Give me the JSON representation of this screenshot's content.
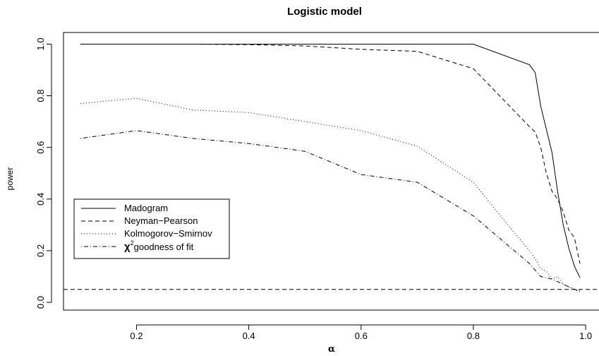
{
  "chart_data": {
    "type": "line",
    "title": "Logistic model",
    "xlabel": "α",
    "ylabel": "power",
    "xlim": [
      0.07,
      1.025
    ],
    "ylim": [
      -0.03,
      1.045
    ],
    "x_ticks": [
      0.2,
      0.4,
      0.6,
      0.8,
      1.0
    ],
    "x_tick_labels": [
      "0.2",
      "0.4",
      "0.6",
      "0.8",
      "1.0"
    ],
    "y_ticks": [
      0.0,
      0.2,
      0.4,
      0.6,
      0.8,
      1.0
    ],
    "y_tick_labels": [
      "0.0",
      "0.2",
      "0.4",
      "0.6",
      "0.8",
      "1.0"
    ],
    "grid": false,
    "legend_position": "bottom-left",
    "reference_line": {
      "y": 0.05,
      "style": "dashed"
    },
    "series": [
      {
        "name": "Madogram",
        "style": "solid",
        "x": [
          0.1,
          0.2,
          0.3,
          0.4,
          0.5,
          0.6,
          0.7,
          0.8,
          0.9,
          0.91,
          0.92,
          0.93,
          0.94,
          0.95,
          0.96,
          0.97,
          0.98,
          0.99
        ],
        "y": [
          1.0,
          1.0,
          1.0,
          1.0,
          1.0,
          1.0,
          1.0,
          1.0,
          0.92,
          0.89,
          0.76,
          0.67,
          0.58,
          0.43,
          0.3,
          0.21,
          0.14,
          0.095
        ]
      },
      {
        "name": "Neyman−Pearson",
        "style": "dashed",
        "x": [
          0.1,
          0.2,
          0.3,
          0.4,
          0.5,
          0.6,
          0.7,
          0.8,
          0.9,
          0.91,
          0.92,
          0.93,
          0.94,
          0.95,
          0.96,
          0.97,
          0.98,
          0.99
        ],
        "y": [
          1.0,
          1.0,
          1.0,
          0.998,
          0.993,
          0.98,
          0.972,
          0.905,
          0.68,
          0.66,
          0.6,
          0.5,
          0.43,
          0.4,
          0.35,
          0.28,
          0.25,
          0.15
        ]
      },
      {
        "name": "Kolmogorov−Smirnov",
        "style": "dotted",
        "x": [
          0.1,
          0.2,
          0.3,
          0.4,
          0.5,
          0.6,
          0.7,
          0.8,
          0.85,
          0.9,
          0.91,
          0.92,
          0.93,
          0.94,
          0.95,
          0.96,
          0.97,
          0.98,
          0.99
        ],
        "y": [
          0.77,
          0.79,
          0.745,
          0.735,
          0.7,
          0.665,
          0.605,
          0.465,
          0.33,
          0.2,
          0.17,
          0.13,
          0.12,
          0.09,
          0.1,
          0.07,
          0.06,
          0.05,
          0.04
        ]
      },
      {
        "name": "χ²goodness of fit",
        "style": "dotdash",
        "x": [
          0.1,
          0.2,
          0.3,
          0.4,
          0.5,
          0.6,
          0.7,
          0.8,
          0.9,
          0.92,
          0.94,
          0.96,
          0.98,
          0.99
        ],
        "y": [
          0.635,
          0.665,
          0.635,
          0.615,
          0.585,
          0.495,
          0.465,
          0.335,
          0.15,
          0.1,
          0.09,
          0.07,
          0.05,
          0.045
        ]
      }
    ],
    "legend_labels": [
      "Madogram",
      "Neyman−Pearson",
      "Kolmogorov−Smirnov",
      "goodness of fit"
    ],
    "legend_chi_symbol": "χ",
    "legend_chi_superscript": "2"
  }
}
